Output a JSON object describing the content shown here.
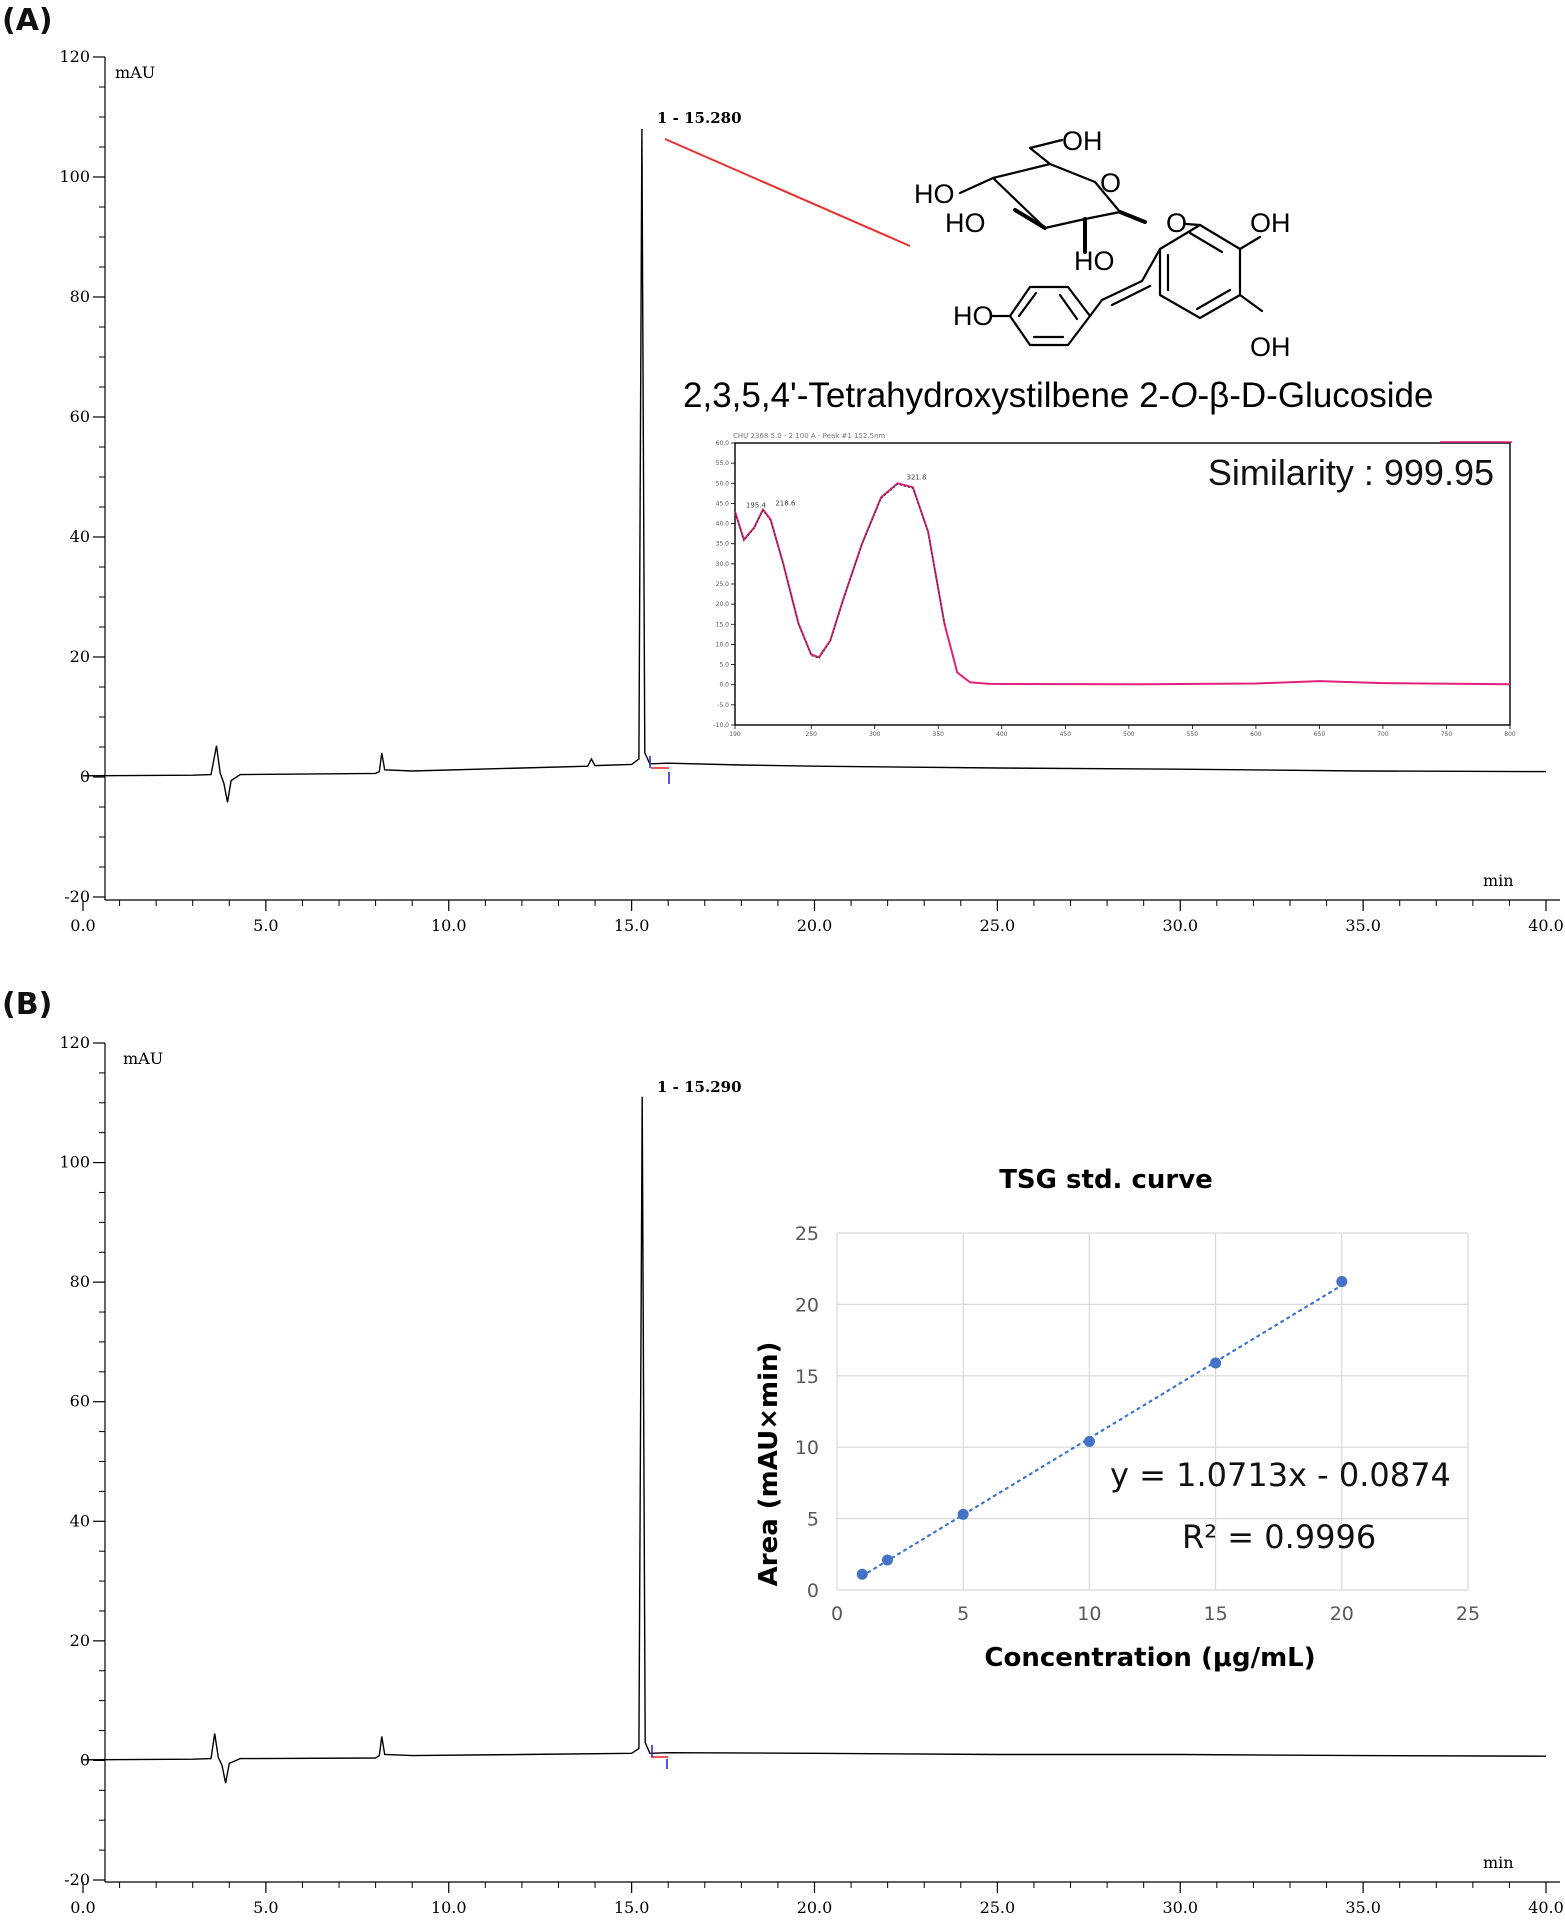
{
  "panels": {
    "a_label": "(A)",
    "b_label": "(B)"
  },
  "chart_data": [
    {
      "id": "A",
      "type": "line",
      "title": "",
      "ylabel": "mAU",
      "xlabel": "min",
      "xlim": [
        0,
        40
      ],
      "ylim": [
        -20,
        120
      ],
      "x_ticks": [
        "0.0",
        "5.0",
        "10.0",
        "15.0",
        "20.0",
        "25.0",
        "30.0",
        "35.0",
        "40.0"
      ],
      "y_ticks": [
        "-20",
        "0",
        "20",
        "40",
        "60",
        "80",
        "100",
        "120"
      ],
      "peak_label": "1 - 15.280",
      "series": [
        {
          "name": "chromatogram",
          "points": [
            [
              0,
              0.2
            ],
            [
              3,
              0.3
            ],
            [
              3.5,
              0.4
            ],
            [
              3.65,
              5.2
            ],
            [
              3.75,
              0.6
            ],
            [
              3.85,
              -1.0
            ],
            [
              3.95,
              -4.2
            ],
            [
              4.05,
              -0.6
            ],
            [
              4.3,
              0.4
            ],
            [
              8,
              0.6
            ],
            [
              8.1,
              0.9
            ],
            [
              8.17,
              4.0
            ],
            [
              8.25,
              1.2
            ],
            [
              9,
              1.0
            ],
            [
              12,
              1.5
            ],
            [
              13.8,
              1.8
            ],
            [
              13.9,
              3.0
            ],
            [
              14,
              1.9
            ],
            [
              15,
              2.1
            ],
            [
              15.2,
              3.0
            ],
            [
              15.28,
              108
            ],
            [
              15.36,
              4.0
            ],
            [
              15.5,
              2.2
            ],
            [
              16,
              2.3
            ],
            [
              18,
              2.0
            ],
            [
              20,
              1.8
            ],
            [
              25,
              1.5
            ],
            [
              30,
              1.3
            ],
            [
              35,
              1.0
            ],
            [
              40,
              0.9
            ]
          ]
        }
      ],
      "compound_name": "2,3,5,4'-Tetrahydroxystilbene 2-",
      "compound_italic": "O",
      "compound_suffix": "-β-D-Glucoside",
      "structure_labels": [
        "OH",
        "HO",
        "O",
        "HO",
        "HO",
        "O",
        "OH",
        "HO",
        "OH"
      ],
      "inset": {
        "type": "line",
        "similarity_text": "Similarity : 999.95",
        "header_text": "CHU 2368 5.0 - 2 100 A - Peak #1 152.5nm",
        "xlim": [
          190,
          800
        ],
        "ylim": [
          -10,
          60
        ],
        "x_ticks": [
          "190",
          "250",
          "300",
          "350",
          "400",
          "450",
          "500",
          "550",
          "600",
          "650",
          "700",
          "750",
          "800"
        ],
        "y_ticks": [
          "-10.0",
          "-5.0",
          "0.0",
          "5.0",
          "10.0",
          "15.0",
          "20.0",
          "25.0",
          "30.0",
          "35.0",
          "40.0",
          "45.0",
          "50.0",
          "55.0",
          "60.0"
        ],
        "peak_labels": [
          "195.4",
          "218.6",
          "321.8"
        ],
        "series": [
          {
            "name": "spectrum",
            "points": [
              [
                190,
                43
              ],
              [
                197,
                36
              ],
              [
                205,
                39
              ],
              [
                212,
                43.5
              ],
              [
                218,
                41
              ],
              [
                228,
                30
              ],
              [
                240,
                15.2
              ],
              [
                250,
                7.5
              ],
              [
                256,
                6.8
              ],
              [
                265,
                11
              ],
              [
                275,
                21
              ],
              [
                290,
                35
              ],
              [
                305,
                46.5
              ],
              [
                318,
                50
              ],
              [
                330,
                49
              ],
              [
                342,
                38
              ],
              [
                355,
                15
              ],
              [
                365,
                3
              ],
              [
                375,
                0.6
              ],
              [
                390,
                0.2
              ],
              [
                500,
                0.1
              ],
              [
                600,
                0.3
              ],
              [
                650,
                0.9
              ],
              [
                700,
                0.4
              ],
              [
                800,
                0.1
              ]
            ]
          }
        ]
      }
    },
    {
      "id": "B",
      "type": "line",
      "title": "",
      "ylabel": "mAU",
      "xlabel": "min",
      "xlim": [
        0,
        40
      ],
      "ylim": [
        -20,
        120
      ],
      "x_ticks": [
        "0.0",
        "5.0",
        "10.0",
        "15.0",
        "20.0",
        "25.0",
        "30.0",
        "35.0",
        "40.0"
      ],
      "y_ticks": [
        "-20",
        "0",
        "20",
        "40",
        "60",
        "80",
        "100",
        "120"
      ],
      "peak_label": "1 - 15.290",
      "series": [
        {
          "name": "chromatogram",
          "points": [
            [
              0,
              0.1
            ],
            [
              3,
              0.2
            ],
            [
              3.5,
              0.3
            ],
            [
              3.6,
              4.5
            ],
            [
              3.7,
              0.5
            ],
            [
              3.8,
              -0.8
            ],
            [
              3.9,
              -3.8
            ],
            [
              4.0,
              -0.5
            ],
            [
              4.3,
              0.3
            ],
            [
              8,
              0.4
            ],
            [
              8.1,
              0.8
            ],
            [
              8.17,
              4.0
            ],
            [
              8.25,
              1.0
            ],
            [
              9,
              0.8
            ],
            [
              12,
              1.0
            ],
            [
              15,
              1.2
            ],
            [
              15.2,
              2.0
            ],
            [
              15.29,
              111
            ],
            [
              15.37,
              3.0
            ],
            [
              15.5,
              1.2
            ],
            [
              16,
              1.3
            ],
            [
              20,
              1.2
            ],
            [
              25,
              1.0
            ],
            [
              30,
              1.0
            ],
            [
              35,
              0.8
            ],
            [
              40,
              0.7
            ]
          ]
        }
      ],
      "inset": {
        "type": "scatter",
        "title": "TSG std. curve",
        "xlabel": "Concentration (μg/mL)",
        "ylabel": "Area (mAU×min)",
        "xlim": [
          0,
          25
        ],
        "ylim": [
          0,
          25
        ],
        "x_ticks": [
          "0",
          "5",
          "10",
          "15",
          "20",
          "25"
        ],
        "y_ticks": [
          "0",
          "5",
          "10",
          "15",
          "20",
          "25"
        ],
        "x": [
          1,
          2,
          5,
          10,
          15,
          20
        ],
        "y": [
          1.1,
          2.1,
          5.3,
          10.4,
          15.9,
          21.6
        ],
        "trendline": {
          "slope": 1.0713,
          "intercept": -0.0874
        },
        "equation": "y = 1.0713x - 0.0874",
        "r2": "R² = 0.9996"
      }
    }
  ]
}
